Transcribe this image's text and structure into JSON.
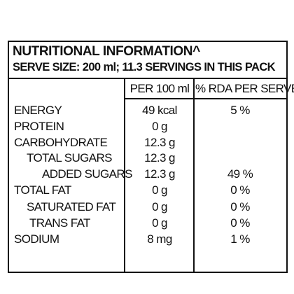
{
  "header": {
    "title": "NUTRITIONAL INFORMATION^",
    "serving": "SERVE SIZE: 200 ml;  11.3 SERVINGS IN THIS PACK"
  },
  "table": {
    "columns": [
      "PER 100 ml",
      "% RDA PER SERVE"
    ],
    "rows": [
      {
        "nutrient": "ENERGY",
        "per_100ml": "49 kcal",
        "rda": "5 %"
      },
      {
        "nutrient": "PROTEIN",
        "per_100ml": "0 g"
      },
      {
        "nutrient": "CARBOHYDRATE",
        "per_100ml": "12.3 g"
      },
      {
        "nutrient": "TOTAL SUGARS",
        "per_100ml": "12.3 g"
      },
      {
        "nutrient": "ADDED SUGARS",
        "per_100ml": "12.3 g",
        "rda": "49 %"
      },
      {
        "nutrient": "TOTAL FAT",
        "per_100ml": "0 g",
        "rda": "0 %"
      },
      {
        "nutrient": "SATURATED FAT",
        "per_100ml": "0 g",
        "rda": "0 %"
      },
      {
        "nutrient": "TRANS FAT",
        "per_100ml": "0 g",
        "rda": "0 %"
      },
      {
        "nutrient": "SODIUM",
        "per_100ml": "8 mg",
        "rda": "1 %"
      }
    ]
  }
}
